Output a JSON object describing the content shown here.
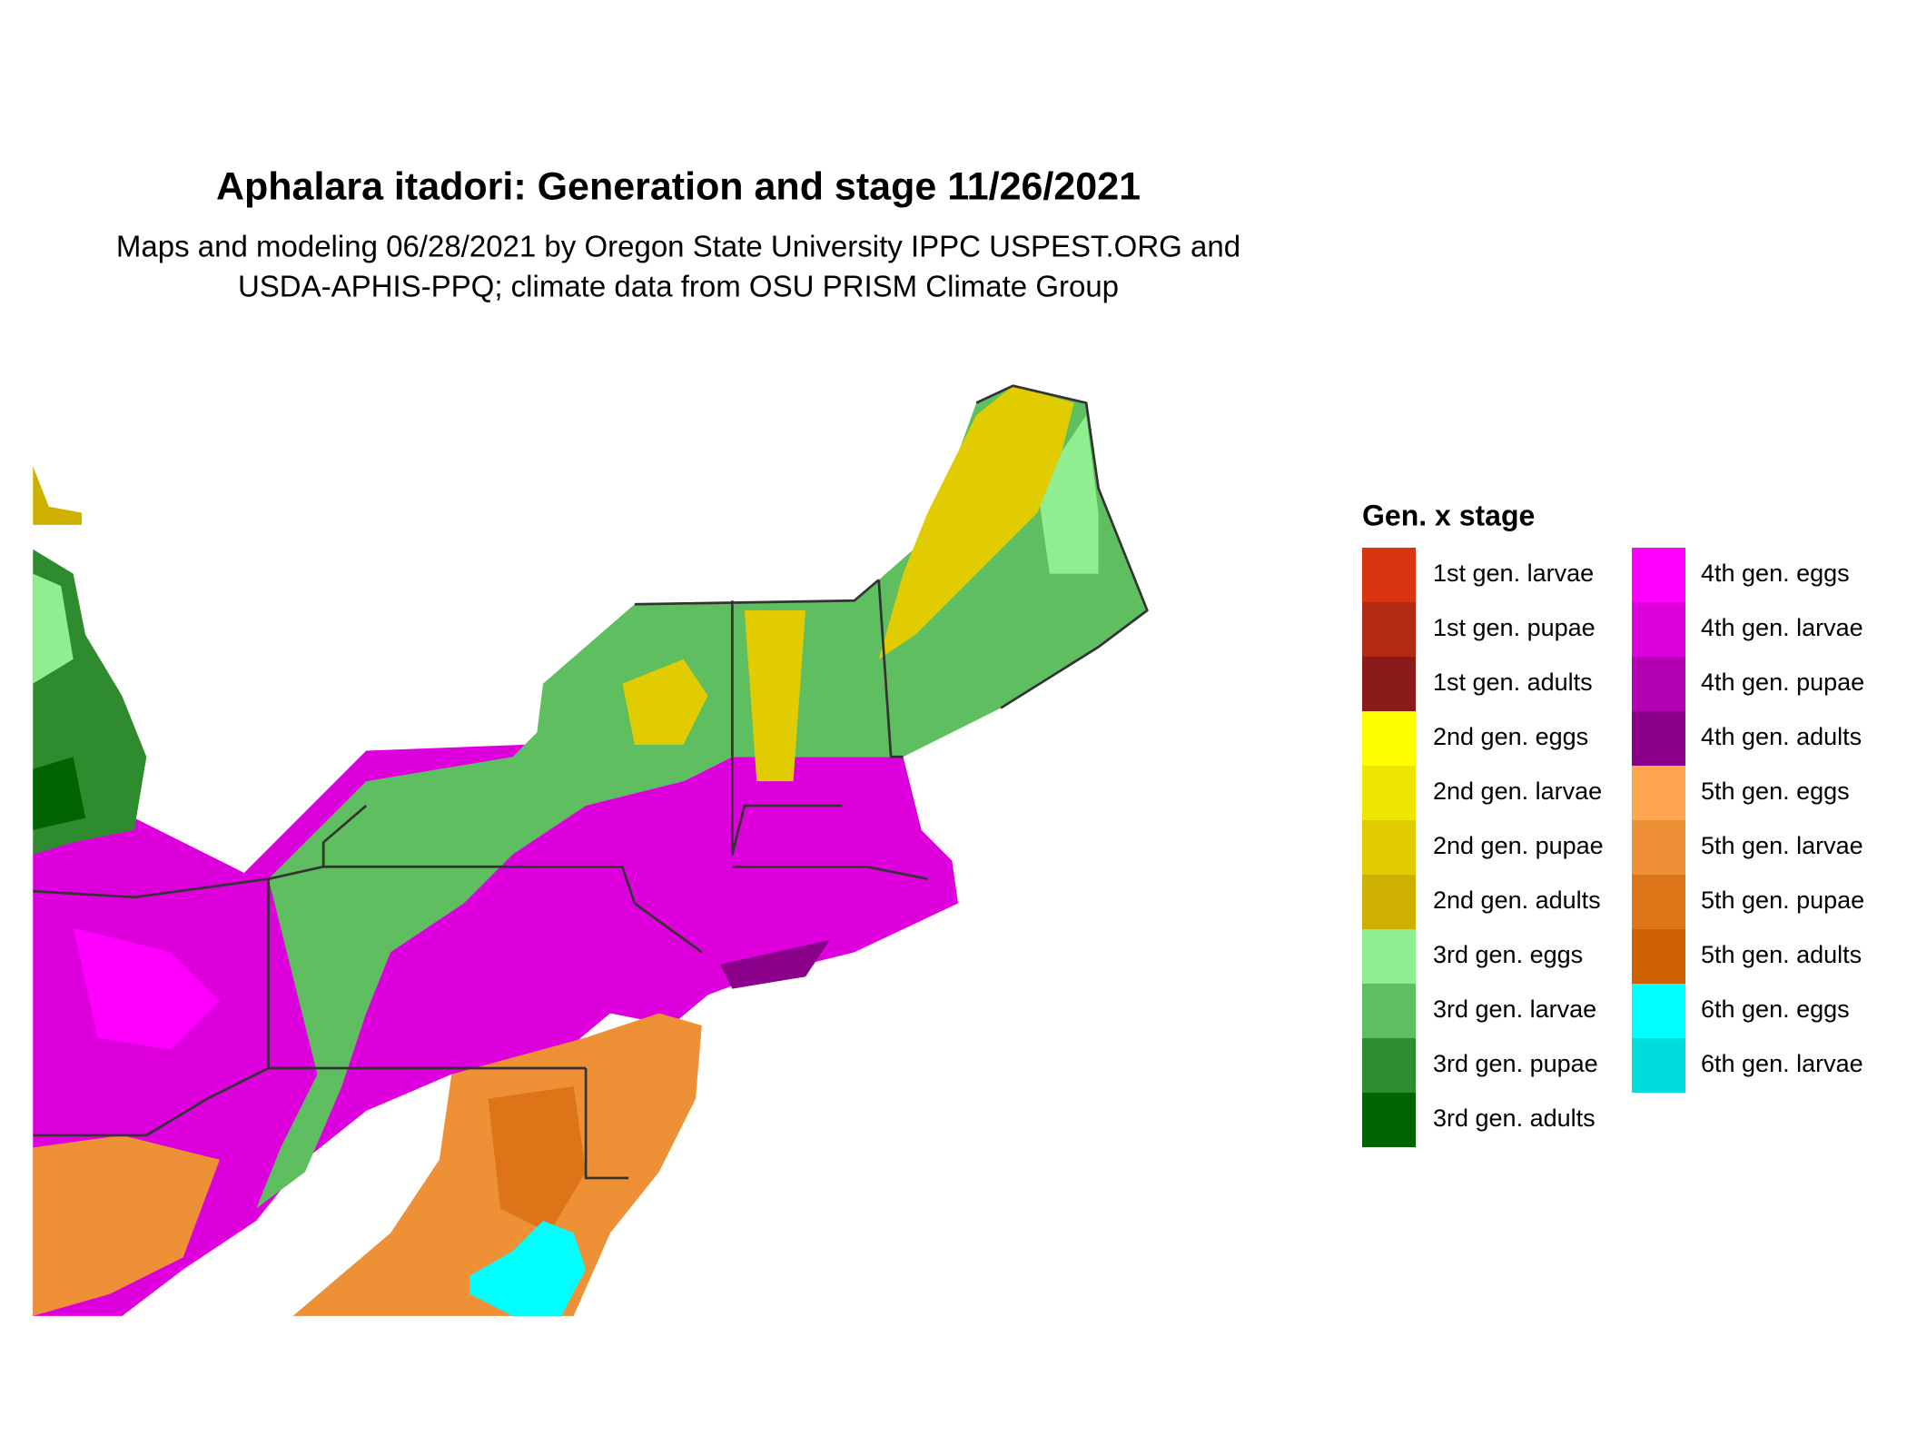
{
  "header": {
    "title": "Aphalara itadori: Generation and stage 11/26/2021",
    "subtitle": [
      "Maps and modeling 06/28/2021 by Oregon State University IPPC USPEST.ORG and",
      "USDA-APHIS-PPQ; climate data from OSU PRISM Climate Group"
    ]
  },
  "legend": {
    "title": "Gen. x stage",
    "items": [
      {
        "label": "1st gen. larvae",
        "color": "#d93511"
      },
      {
        "label": "1st gen. pupae",
        "color": "#b22a14"
      },
      {
        "label": "1st gen. adults",
        "color": "#8b1a1a"
      },
      {
        "label": "2nd gen. eggs",
        "color": "#ffff00"
      },
      {
        "label": "2nd gen. larvae",
        "color": "#eee600"
      },
      {
        "label": "2nd gen. pupae",
        "color": "#e0cc00"
      },
      {
        "label": "2nd gen. adults",
        "color": "#cdb000"
      },
      {
        "label": "3rd gen. eggs",
        "color": "#90ee90"
      },
      {
        "label": "3rd gen. larvae",
        "color": "#5fbe5f"
      },
      {
        "label": "3rd gen. pupae",
        "color": "#2e8b2e"
      },
      {
        "label": "3rd gen. adults",
        "color": "#006400"
      },
      {
        "label": "4th gen. eggs",
        "color": "#ff00ff"
      },
      {
        "label": "4th gen. larvae",
        "color": "#dd00dd"
      },
      {
        "label": "4th gen. pupae",
        "color": "#b300b3"
      },
      {
        "label": "4th gen. adults",
        "color": "#8b008b"
      },
      {
        "label": "5th gen. eggs",
        "color": "#ffa54f"
      },
      {
        "label": "5th gen. larvae",
        "color": "#ee9035"
      },
      {
        "label": "5th gen. pupae",
        "color": "#dd7518"
      },
      {
        "label": "5th gen. adults",
        "color": "#cd6000"
      },
      {
        "label": "6th gen. eggs",
        "color": "#00ffff"
      },
      {
        "label": "6th gen. larvae",
        "color": "#00dddd"
      }
    ]
  }
}
